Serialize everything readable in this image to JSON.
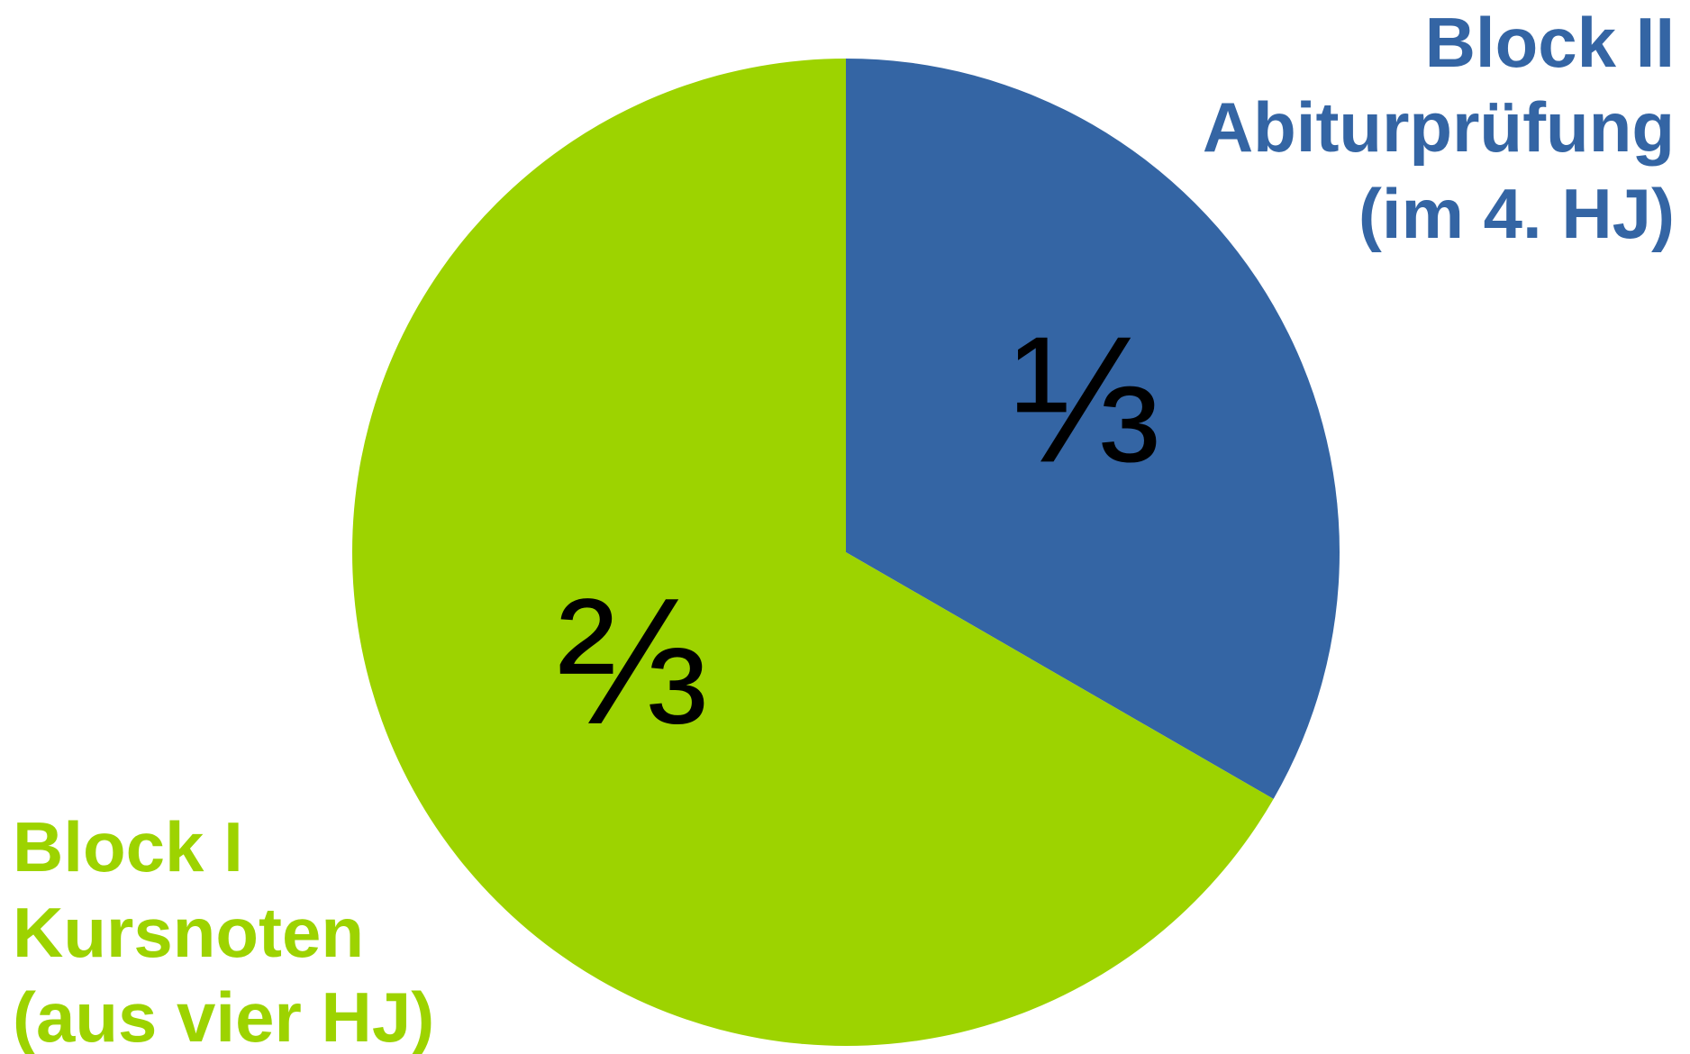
{
  "chart_data": {
    "type": "pie",
    "categories": [
      [
        "Block II",
        "Abiturprüfung",
        "(im 4. HJ)"
      ],
      [
        "Block I",
        "Kursnoten",
        "(aus vier HJ)"
      ]
    ],
    "values": [
      0.3333,
      0.6667
    ],
    "value_labels": [
      "⅓",
      "⅔"
    ],
    "colors": [
      "#3465a4",
      "#9dd300"
    ]
  }
}
